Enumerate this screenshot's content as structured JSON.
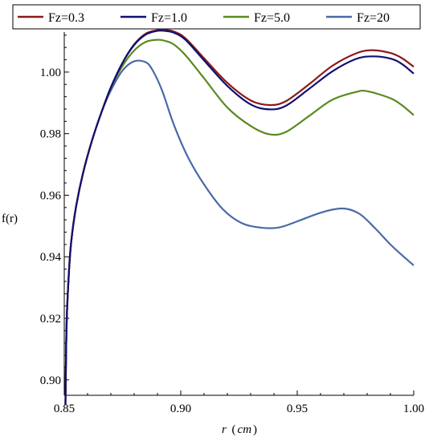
{
  "chart_data": {
    "type": "line",
    "xlabel_var": "r",
    "xlabel_unit": "cm",
    "ylabel": "f(r)",
    "xlim": [
      0.85,
      1.0
    ],
    "ylim": [
      0.895,
      1.013
    ],
    "xticks": [
      0.85,
      0.9,
      0.95,
      1.0
    ],
    "xtick_labels": [
      "0.85",
      "0.90",
      "0.95",
      "1.00"
    ],
    "yticks": [
      0.9,
      0.92,
      0.94,
      0.96,
      0.98,
      1.0
    ],
    "ytick_labels": [
      "0.90",
      "0.92",
      "0.94",
      "0.96",
      "0.98",
      "1.00"
    ],
    "legend_position": "top",
    "grid": false,
    "series": [
      {
        "name": "Fz=0.3",
        "color": "#8b1a1a",
        "x": [
          0.8505,
          0.851,
          0.852,
          0.853,
          0.855,
          0.858,
          0.862,
          0.866,
          0.87,
          0.875,
          0.88,
          0.885,
          0.89,
          0.893,
          0.897,
          0.902,
          0.91,
          0.92,
          0.93,
          0.938,
          0.945,
          0.955,
          0.965,
          0.975,
          0.982,
          0.99,
          0.995,
          1.0
        ],
        "y": [
          0.892,
          0.918,
          0.935,
          0.945,
          0.956,
          0.967,
          0.978,
          0.987,
          0.995,
          1.003,
          1.009,
          1.0125,
          1.0136,
          1.0137,
          1.0132,
          1.011,
          1.0045,
          0.9965,
          0.9908,
          0.9893,
          0.9905,
          0.996,
          1.002,
          1.006,
          1.0071,
          1.0062,
          1.0045,
          1.0017
        ]
      },
      {
        "name": "Fz=1.0",
        "color": "#101070",
        "x": [
          0.8505,
          0.851,
          0.852,
          0.853,
          0.855,
          0.858,
          0.862,
          0.866,
          0.87,
          0.875,
          0.88,
          0.885,
          0.89,
          0.893,
          0.897,
          0.902,
          0.91,
          0.92,
          0.93,
          0.938,
          0.945,
          0.955,
          0.965,
          0.975,
          0.982,
          0.99,
          0.995,
          1.0
        ],
        "y": [
          0.892,
          0.918,
          0.935,
          0.945,
          0.956,
          0.967,
          0.978,
          0.987,
          0.995,
          1.003,
          1.0088,
          1.0122,
          1.0134,
          1.0134,
          1.0128,
          1.0105,
          1.0038,
          0.9955,
          0.9895,
          0.9879,
          0.989,
          0.9945,
          1.0002,
          1.0042,
          1.0051,
          1.0044,
          1.0026,
          0.9995
        ]
      },
      {
        "name": "Fz=5.0",
        "color": "#5a8a1e",
        "x": [
          0.8505,
          0.851,
          0.852,
          0.853,
          0.855,
          0.858,
          0.862,
          0.866,
          0.87,
          0.875,
          0.88,
          0.885,
          0.89,
          0.893,
          0.897,
          0.902,
          0.91,
          0.92,
          0.93,
          0.938,
          0.945,
          0.955,
          0.965,
          0.975,
          0.98,
          0.99,
          0.995,
          1.0
        ],
        "y": [
          0.892,
          0.918,
          0.935,
          0.945,
          0.956,
          0.967,
          0.978,
          0.987,
          0.995,
          1.002,
          1.007,
          1.0098,
          1.0105,
          1.0102,
          1.009,
          1.0055,
          0.998,
          0.9885,
          0.9825,
          0.9798,
          0.9805,
          0.9857,
          0.991,
          0.9935,
          0.9938,
          0.9915,
          0.9892,
          0.986
        ]
      },
      {
        "name": "Fz=20",
        "color": "#4a6aa8",
        "x": [
          0.8505,
          0.851,
          0.852,
          0.853,
          0.855,
          0.858,
          0.862,
          0.866,
          0.87,
          0.875,
          0.88,
          0.885,
          0.888,
          0.892,
          0.897,
          0.903,
          0.91,
          0.918,
          0.926,
          0.934,
          0.942,
          0.95,
          0.958,
          0.965,
          0.971,
          0.977,
          0.983,
          0.99,
          0.995,
          1.0
        ],
        "y": [
          0.892,
          0.918,
          0.935,
          0.945,
          0.956,
          0.967,
          0.978,
          0.987,
          0.994,
          1.0005,
          1.0035,
          1.0032,
          1.0005,
          0.994,
          0.983,
          0.9725,
          0.9635,
          0.9555,
          0.951,
          0.9495,
          0.9495,
          0.9515,
          0.9538,
          0.9553,
          0.9556,
          0.9538,
          0.9496,
          0.944,
          0.9405,
          0.9372
        ]
      }
    ]
  }
}
